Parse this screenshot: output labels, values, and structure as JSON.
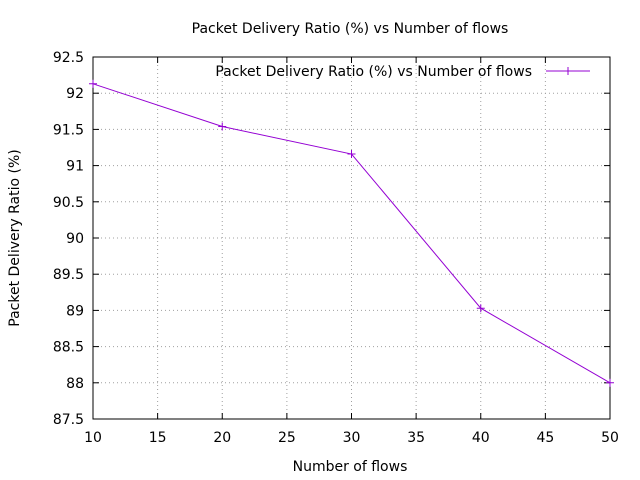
{
  "chart_data": {
    "type": "line",
    "title": "Packet Delivery Ratio (%) vs Number of flows",
    "xlabel": "Number of flows",
    "ylabel": "Packet Delivery Ratio (%)",
    "xlim": [
      10,
      50
    ],
    "ylim": [
      87.5,
      92.5
    ],
    "xticks": [
      10,
      15,
      20,
      25,
      30,
      35,
      40,
      45,
      50
    ],
    "yticks": [
      87.5,
      88,
      88.5,
      89,
      89.5,
      90,
      90.5,
      91,
      91.5,
      92,
      92.5
    ],
    "grid": true,
    "legend_position": "top-right",
    "series": [
      {
        "name": "Packet Delivery Ratio (%) vs Number of flows",
        "color": "#9400d3",
        "marker": "plus",
        "x": [
          10,
          20,
          30,
          40,
          50
        ],
        "y": [
          92.13,
          91.54,
          91.16,
          89.03,
          88.0
        ]
      }
    ]
  }
}
